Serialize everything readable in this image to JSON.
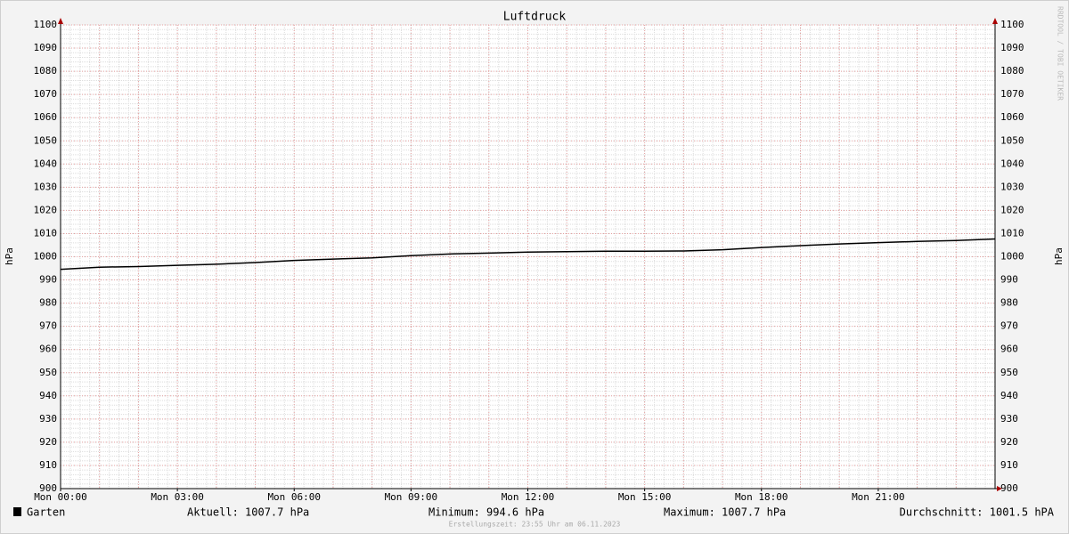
{
  "chart_data": {
    "type": "line",
    "title": "Luftdruck",
    "y_label": "hPa",
    "watermark": "RRDTOOL / TOBI OETIKER",
    "footer": "Erstellungszeit: 23:55 Uhr am 06.11.2023",
    "x": [
      0,
      1,
      2,
      3,
      4,
      5,
      6,
      7,
      8,
      9,
      10,
      11,
      12,
      13,
      14,
      15,
      16,
      17,
      18,
      19,
      20,
      21,
      22,
      23,
      24
    ],
    "series": [
      {
        "name": "Garten",
        "color": "#000000",
        "values": [
          994.6,
          995.5,
          995.8,
          996.3,
          996.8,
          997.5,
          998.4,
          999.0,
          999.5,
          1000.5,
          1001.2,
          1001.6,
          1002.0,
          1002.2,
          1002.4,
          1002.4,
          1002.5,
          1003.0,
          1004.0,
          1004.8,
          1005.5,
          1006.1,
          1006.6,
          1007.0,
          1007.7
        ]
      }
    ],
    "stats": [
      "Aktuell: 1007.7 hPa",
      "Minimum: 994.6 hPa",
      "Maximum: 1007.7 hPa",
      "Durchschnitt: 1001.5 hPA"
    ],
    "xlim": [
      0,
      24
    ],
    "xticks": [
      {
        "value": 0,
        "label": "Mon 00:00"
      },
      {
        "value": 3,
        "label": "Mon 03:00"
      },
      {
        "value": 6,
        "label": "Mon 06:00"
      },
      {
        "value": 9,
        "label": "Mon 09:00"
      },
      {
        "value": 12,
        "label": "Mon 12:00"
      },
      {
        "value": 15,
        "label": "Mon 15:00"
      },
      {
        "value": 18,
        "label": "Mon 18:00"
      },
      {
        "value": 21,
        "label": "Mon 21:00"
      }
    ],
    "ylim": [
      900,
      1100
    ],
    "yticks": [
      900,
      910,
      920,
      930,
      940,
      950,
      960,
      970,
      980,
      990,
      1000,
      1010,
      1020,
      1030,
      1040,
      1050,
      1060,
      1070,
      1080,
      1090,
      1100
    ],
    "grid": {
      "x_major": 1,
      "x_minor": 0.25,
      "y_minor": 2
    }
  }
}
